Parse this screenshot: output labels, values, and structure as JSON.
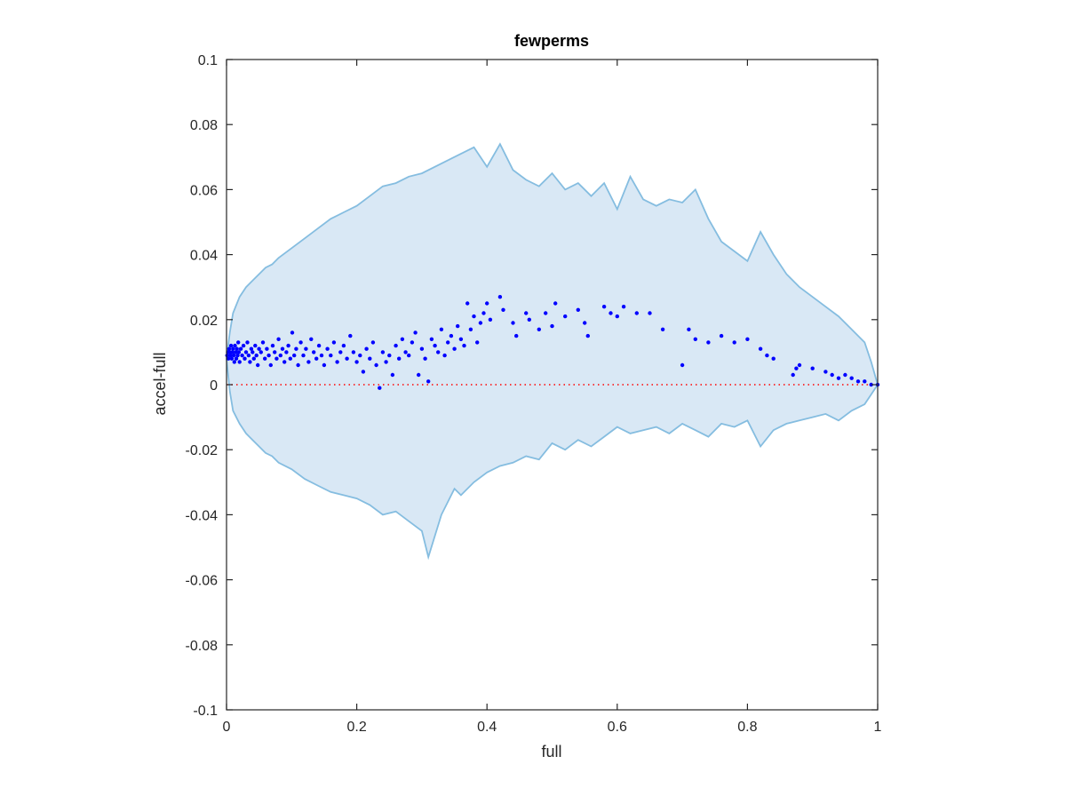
{
  "chart_data": {
    "type": "scatter",
    "title": "fewperms",
    "xlabel": "full",
    "ylabel": "accel-full",
    "xlim": [
      0,
      1
    ],
    "ylim": [
      -0.1,
      0.1
    ],
    "grid": false,
    "box": true,
    "xticks": [
      0,
      0.2,
      0.4,
      0.6,
      0.8,
      1
    ],
    "yticks": [
      -0.1,
      -0.08,
      -0.06,
      -0.04,
      -0.02,
      0,
      0.02,
      0.04,
      0.06,
      0.08,
      0.1
    ],
    "xtick_labels": [
      "0",
      "0.2",
      "0.4",
      "0.6",
      "0.8",
      "1"
    ],
    "ytick_labels": [
      "-0.1",
      "-0.08",
      "-0.06",
      "-0.04",
      "-0.02",
      "0",
      "0.02",
      "0.04",
      "0.06",
      "0.08",
      "0.1"
    ],
    "colors": {
      "band_fill": "#d9e8f5",
      "band_edge": "#85bde0",
      "points": "#0000ff",
      "reference_line": "#ff0000",
      "axes": "#262626"
    },
    "reference_line": {
      "y": 0,
      "style": "dotted"
    },
    "band": {
      "upper": [
        [
          0,
          0.008
        ],
        [
          0.005,
          0.016
        ],
        [
          0.01,
          0.022
        ],
        [
          0.02,
          0.027
        ],
        [
          0.03,
          0.03
        ],
        [
          0.04,
          0.032
        ],
        [
          0.05,
          0.034
        ],
        [
          0.06,
          0.036
        ],
        [
          0.07,
          0.037
        ],
        [
          0.08,
          0.039
        ],
        [
          0.1,
          0.042
        ],
        [
          0.12,
          0.045
        ],
        [
          0.14,
          0.048
        ],
        [
          0.16,
          0.051
        ],
        [
          0.18,
          0.053
        ],
        [
          0.2,
          0.055
        ],
        [
          0.22,
          0.058
        ],
        [
          0.24,
          0.061
        ],
        [
          0.26,
          0.062
        ],
        [
          0.28,
          0.064
        ],
        [
          0.3,
          0.065
        ],
        [
          0.33,
          0.068
        ],
        [
          0.36,
          0.071
        ],
        [
          0.38,
          0.073
        ],
        [
          0.4,
          0.067
        ],
        [
          0.42,
          0.074
        ],
        [
          0.44,
          0.066
        ],
        [
          0.46,
          0.063
        ],
        [
          0.48,
          0.061
        ],
        [
          0.5,
          0.065
        ],
        [
          0.52,
          0.06
        ],
        [
          0.54,
          0.062
        ],
        [
          0.56,
          0.058
        ],
        [
          0.58,
          0.062
        ],
        [
          0.6,
          0.054
        ],
        [
          0.62,
          0.064
        ],
        [
          0.64,
          0.057
        ],
        [
          0.66,
          0.055
        ],
        [
          0.68,
          0.057
        ],
        [
          0.7,
          0.056
        ],
        [
          0.72,
          0.06
        ],
        [
          0.74,
          0.051
        ],
        [
          0.76,
          0.044
        ],
        [
          0.78,
          0.041
        ],
        [
          0.8,
          0.038
        ],
        [
          0.82,
          0.047
        ],
        [
          0.84,
          0.04
        ],
        [
          0.86,
          0.034
        ],
        [
          0.88,
          0.03
        ],
        [
          0.9,
          0.027
        ],
        [
          0.92,
          0.024
        ],
        [
          0.94,
          0.021
        ],
        [
          0.96,
          0.017
        ],
        [
          0.98,
          0.013
        ],
        [
          0.99,
          0.007
        ],
        [
          1.0,
          0.0
        ]
      ],
      "lower": [
        [
          0,
          0.008
        ],
        [
          0.005,
          -0.002
        ],
        [
          0.01,
          -0.008
        ],
        [
          0.02,
          -0.012
        ],
        [
          0.03,
          -0.015
        ],
        [
          0.04,
          -0.017
        ],
        [
          0.05,
          -0.019
        ],
        [
          0.06,
          -0.021
        ],
        [
          0.07,
          -0.022
        ],
        [
          0.08,
          -0.024
        ],
        [
          0.1,
          -0.026
        ],
        [
          0.12,
          -0.029
        ],
        [
          0.14,
          -0.031
        ],
        [
          0.16,
          -0.033
        ],
        [
          0.18,
          -0.034
        ],
        [
          0.2,
          -0.035
        ],
        [
          0.22,
          -0.037
        ],
        [
          0.24,
          -0.04
        ],
        [
          0.26,
          -0.039
        ],
        [
          0.28,
          -0.042
        ],
        [
          0.3,
          -0.045
        ],
        [
          0.31,
          -0.053
        ],
        [
          0.33,
          -0.04
        ],
        [
          0.35,
          -0.032
        ],
        [
          0.36,
          -0.034
        ],
        [
          0.38,
          -0.03
        ],
        [
          0.4,
          -0.027
        ],
        [
          0.42,
          -0.025
        ],
        [
          0.44,
          -0.024
        ],
        [
          0.46,
          -0.022
        ],
        [
          0.48,
          -0.023
        ],
        [
          0.5,
          -0.018
        ],
        [
          0.52,
          -0.02
        ],
        [
          0.54,
          -0.017
        ],
        [
          0.56,
          -0.019
        ],
        [
          0.58,
          -0.016
        ],
        [
          0.6,
          -0.013
        ],
        [
          0.62,
          -0.015
        ],
        [
          0.64,
          -0.014
        ],
        [
          0.66,
          -0.013
        ],
        [
          0.68,
          -0.015
        ],
        [
          0.7,
          -0.012
        ],
        [
          0.72,
          -0.014
        ],
        [
          0.74,
          -0.016
        ],
        [
          0.76,
          -0.012
        ],
        [
          0.78,
          -0.013
        ],
        [
          0.8,
          -0.011
        ],
        [
          0.82,
          -0.019
        ],
        [
          0.84,
          -0.014
        ],
        [
          0.86,
          -0.012
        ],
        [
          0.88,
          -0.011
        ],
        [
          0.9,
          -0.01
        ],
        [
          0.92,
          -0.009
        ],
        [
          0.94,
          -0.011
        ],
        [
          0.96,
          -0.008
        ],
        [
          0.98,
          -0.006
        ],
        [
          0.99,
          -0.003
        ],
        [
          1.0,
          0.0
        ]
      ]
    },
    "points": [
      [
        0.001,
        0.009
      ],
      [
        0.002,
        0.01
      ],
      [
        0.003,
        0.008
      ],
      [
        0.004,
        0.011
      ],
      [
        0.005,
        0.01
      ],
      [
        0.006,
        0.009
      ],
      [
        0.007,
        0.012
      ],
      [
        0.008,
        0.008
      ],
      [
        0.009,
        0.01
      ],
      [
        0.01,
        0.011
      ],
      [
        0.011,
        0.009
      ],
      [
        0.012,
        0.007
      ],
      [
        0.013,
        0.012
      ],
      [
        0.014,
        0.01
      ],
      [
        0.015,
        0.008
      ],
      [
        0.016,
        0.011
      ],
      [
        0.017,
        0.009
      ],
      [
        0.018,
        0.013
      ],
      [
        0.019,
        0.01
      ],
      [
        0.02,
        0.007
      ],
      [
        0.022,
        0.011
      ],
      [
        0.024,
        0.009
      ],
      [
        0.026,
        0.012
      ],
      [
        0.028,
        0.008
      ],
      [
        0.03,
        0.01
      ],
      [
        0.032,
        0.013
      ],
      [
        0.034,
        0.009
      ],
      [
        0.036,
        0.007
      ],
      [
        0.038,
        0.011
      ],
      [
        0.04,
        0.01
      ],
      [
        0.042,
        0.008
      ],
      [
        0.044,
        0.012
      ],
      [
        0.046,
        0.009
      ],
      [
        0.048,
        0.006
      ],
      [
        0.05,
        0.011
      ],
      [
        0.053,
        0.01
      ],
      [
        0.056,
        0.013
      ],
      [
        0.059,
        0.008
      ],
      [
        0.062,
        0.011
      ],
      [
        0.065,
        0.009
      ],
      [
        0.068,
        0.006
      ],
      [
        0.071,
        0.012
      ],
      [
        0.074,
        0.01
      ],
      [
        0.077,
        0.008
      ],
      [
        0.08,
        0.014
      ],
      [
        0.083,
        0.009
      ],
      [
        0.086,
        0.011
      ],
      [
        0.089,
        0.007
      ],
      [
        0.092,
        0.01
      ],
      [
        0.095,
        0.012
      ],
      [
        0.098,
        0.008
      ],
      [
        0.101,
        0.016
      ],
      [
        0.104,
        0.009
      ],
      [
        0.107,
        0.011
      ],
      [
        0.11,
        0.006
      ],
      [
        0.114,
        0.013
      ],
      [
        0.118,
        0.009
      ],
      [
        0.122,
        0.011
      ],
      [
        0.126,
        0.007
      ],
      [
        0.13,
        0.014
      ],
      [
        0.134,
        0.01
      ],
      [
        0.138,
        0.008
      ],
      [
        0.142,
        0.012
      ],
      [
        0.146,
        0.009
      ],
      [
        0.15,
        0.006
      ],
      [
        0.155,
        0.011
      ],
      [
        0.16,
        0.009
      ],
      [
        0.165,
        0.013
      ],
      [
        0.17,
        0.007
      ],
      [
        0.175,
        0.01
      ],
      [
        0.18,
        0.012
      ],
      [
        0.185,
        0.008
      ],
      [
        0.19,
        0.015
      ],
      [
        0.195,
        0.01
      ],
      [
        0.2,
        0.007
      ],
      [
        0.205,
        0.009
      ],
      [
        0.21,
        0.004
      ],
      [
        0.215,
        0.011
      ],
      [
        0.22,
        0.008
      ],
      [
        0.225,
        0.013
      ],
      [
        0.23,
        0.006
      ],
      [
        0.235,
        -0.001
      ],
      [
        0.24,
        0.01
      ],
      [
        0.245,
        0.007
      ],
      [
        0.25,
        0.009
      ],
      [
        0.255,
        0.003
      ],
      [
        0.26,
        0.012
      ],
      [
        0.265,
        0.008
      ],
      [
        0.27,
        0.014
      ],
      [
        0.275,
        0.01
      ],
      [
        0.28,
        0.009
      ],
      [
        0.285,
        0.013
      ],
      [
        0.29,
        0.016
      ],
      [
        0.295,
        0.003
      ],
      [
        0.3,
        0.011
      ],
      [
        0.305,
        0.008
      ],
      [
        0.31,
        0.001
      ],
      [
        0.315,
        0.014
      ],
      [
        0.32,
        0.012
      ],
      [
        0.325,
        0.01
      ],
      [
        0.33,
        0.017
      ],
      [
        0.335,
        0.009
      ],
      [
        0.34,
        0.013
      ],
      [
        0.345,
        0.015
      ],
      [
        0.35,
        0.011
      ],
      [
        0.355,
        0.018
      ],
      [
        0.36,
        0.014
      ],
      [
        0.365,
        0.012
      ],
      [
        0.37,
        0.025
      ],
      [
        0.375,
        0.017
      ],
      [
        0.38,
        0.021
      ],
      [
        0.385,
        0.013
      ],
      [
        0.39,
        0.019
      ],
      [
        0.395,
        0.022
      ],
      [
        0.4,
        0.025
      ],
      [
        0.405,
        0.02
      ],
      [
        0.42,
        0.027
      ],
      [
        0.425,
        0.023
      ],
      [
        0.44,
        0.019
      ],
      [
        0.445,
        0.015
      ],
      [
        0.46,
        0.022
      ],
      [
        0.465,
        0.02
      ],
      [
        0.48,
        0.017
      ],
      [
        0.49,
        0.022
      ],
      [
        0.5,
        0.018
      ],
      [
        0.505,
        0.025
      ],
      [
        0.52,
        0.021
      ],
      [
        0.54,
        0.023
      ],
      [
        0.55,
        0.019
      ],
      [
        0.555,
        0.015
      ],
      [
        0.58,
        0.024
      ],
      [
        0.59,
        0.022
      ],
      [
        0.6,
        0.021
      ],
      [
        0.61,
        0.024
      ],
      [
        0.63,
        0.022
      ],
      [
        0.65,
        0.022
      ],
      [
        0.67,
        0.017
      ],
      [
        0.7,
        0.006
      ],
      [
        0.71,
        0.017
      ],
      [
        0.72,
        0.014
      ],
      [
        0.74,
        0.013
      ],
      [
        0.76,
        0.015
      ],
      [
        0.78,
        0.013
      ],
      [
        0.8,
        0.014
      ],
      [
        0.82,
        0.011
      ],
      [
        0.83,
        0.009
      ],
      [
        0.84,
        0.008
      ],
      [
        0.87,
        0.003
      ],
      [
        0.875,
        0.005
      ],
      [
        0.88,
        0.006
      ],
      [
        0.9,
        0.005
      ],
      [
        0.92,
        0.004
      ],
      [
        0.93,
        0.003
      ],
      [
        0.94,
        0.002
      ],
      [
        0.95,
        0.003
      ],
      [
        0.96,
        0.002
      ],
      [
        0.97,
        0.001
      ],
      [
        0.98,
        0.001
      ],
      [
        0.99,
        0.0
      ],
      [
        1.0,
        0.0
      ]
    ]
  }
}
